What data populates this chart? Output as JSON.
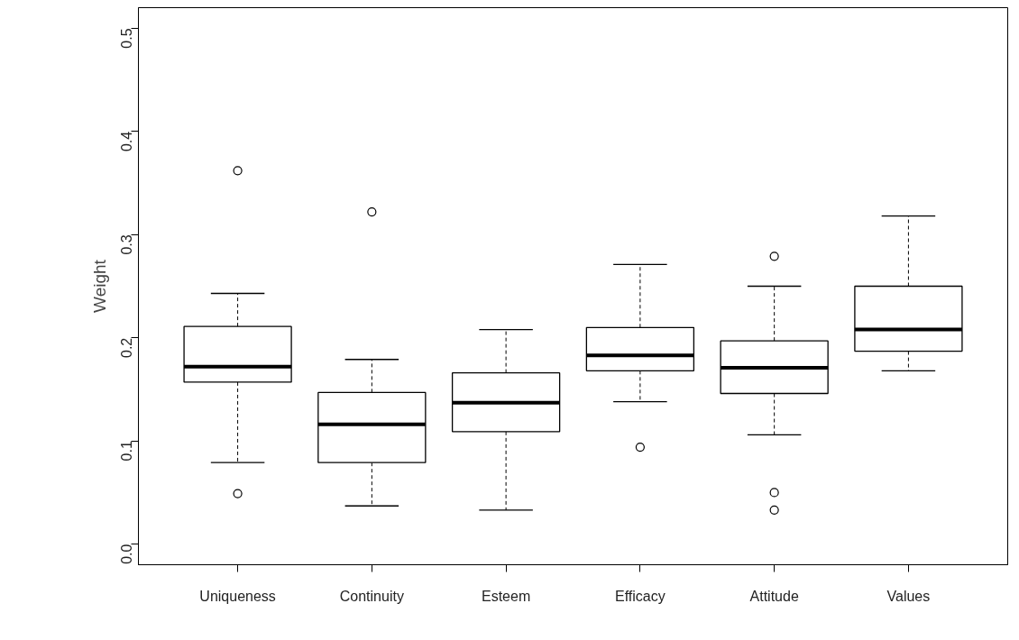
{
  "chart_data": {
    "type": "box",
    "ylabel": "Weight",
    "categories": [
      "Uniqueness",
      "Continuity",
      "Esteem",
      "Efficacy",
      "Attitude",
      "Values"
    ],
    "boxes": [
      {
        "low": 0.079,
        "q1": 0.157,
        "median": 0.172,
        "q3": 0.211,
        "high": 0.243,
        "outliers": [
          0.362,
          0.049
        ]
      },
      {
        "low": 0.037,
        "q1": 0.079,
        "median": 0.116,
        "q3": 0.147,
        "high": 0.179,
        "outliers": [
          0.322
        ]
      },
      {
        "low": 0.033,
        "q1": 0.109,
        "median": 0.137,
        "q3": 0.166,
        "high": 0.208
      },
      {
        "low": 0.138,
        "q1": 0.168,
        "median": 0.183,
        "q3": 0.21,
        "high": 0.271,
        "outliers": [
          0.094
        ]
      },
      {
        "low": 0.106,
        "q1": 0.146,
        "median": 0.171,
        "q3": 0.197,
        "high": 0.25,
        "outliers": [
          0.279,
          0.05,
          0.033
        ]
      },
      {
        "low": 0.168,
        "q1": 0.187,
        "median": 0.208,
        "q3": 0.25,
        "high": 0.318
      }
    ],
    "ylim": [
      -0.02,
      0.52
    ],
    "yticks": [
      {
        "value": 0,
        "label": "0.0"
      },
      0.1,
      0.2,
      0.3,
      0.4,
      0.5
    ],
    "grid": false
  }
}
